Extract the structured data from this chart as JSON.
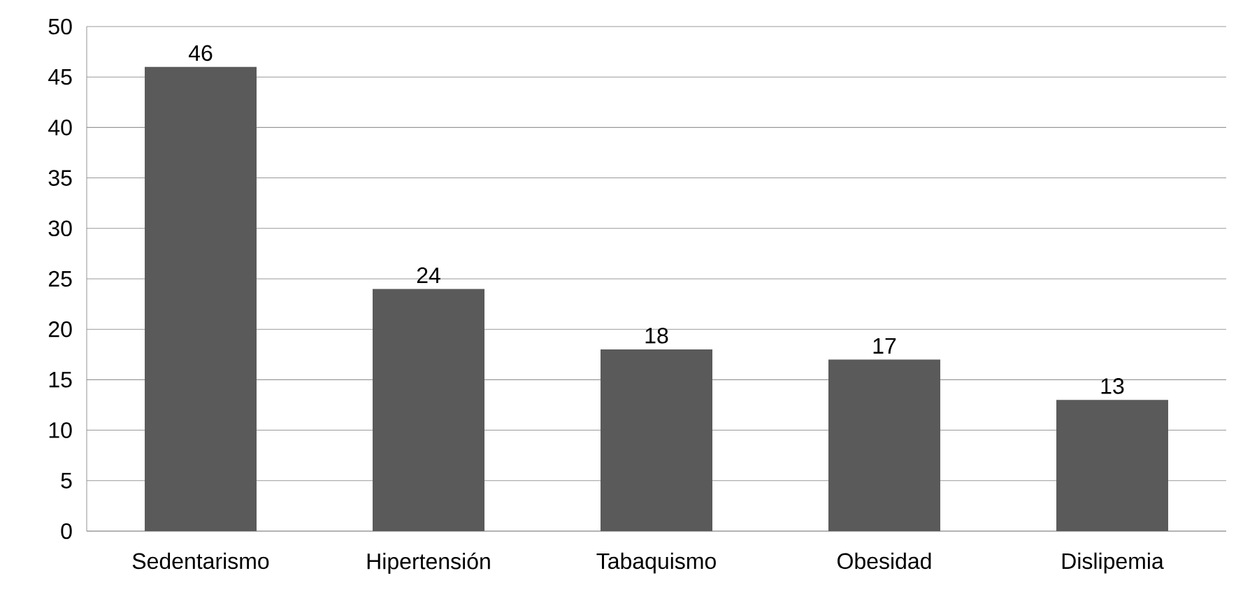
{
  "chart_data": {
    "type": "bar",
    "categories": [
      "Sedentarismo",
      "Hipertensión",
      "Tabaquismo",
      "Obesidad",
      "Dislipemia"
    ],
    "values": [
      46,
      24,
      18,
      17,
      13
    ],
    "color": "#5a5a5a",
    "ylim": [
      0,
      50
    ],
    "yticks": [
      0,
      5,
      10,
      15,
      20,
      25,
      30,
      35,
      40,
      45,
      50
    ],
    "grid": "y",
    "data_labels": true
  }
}
